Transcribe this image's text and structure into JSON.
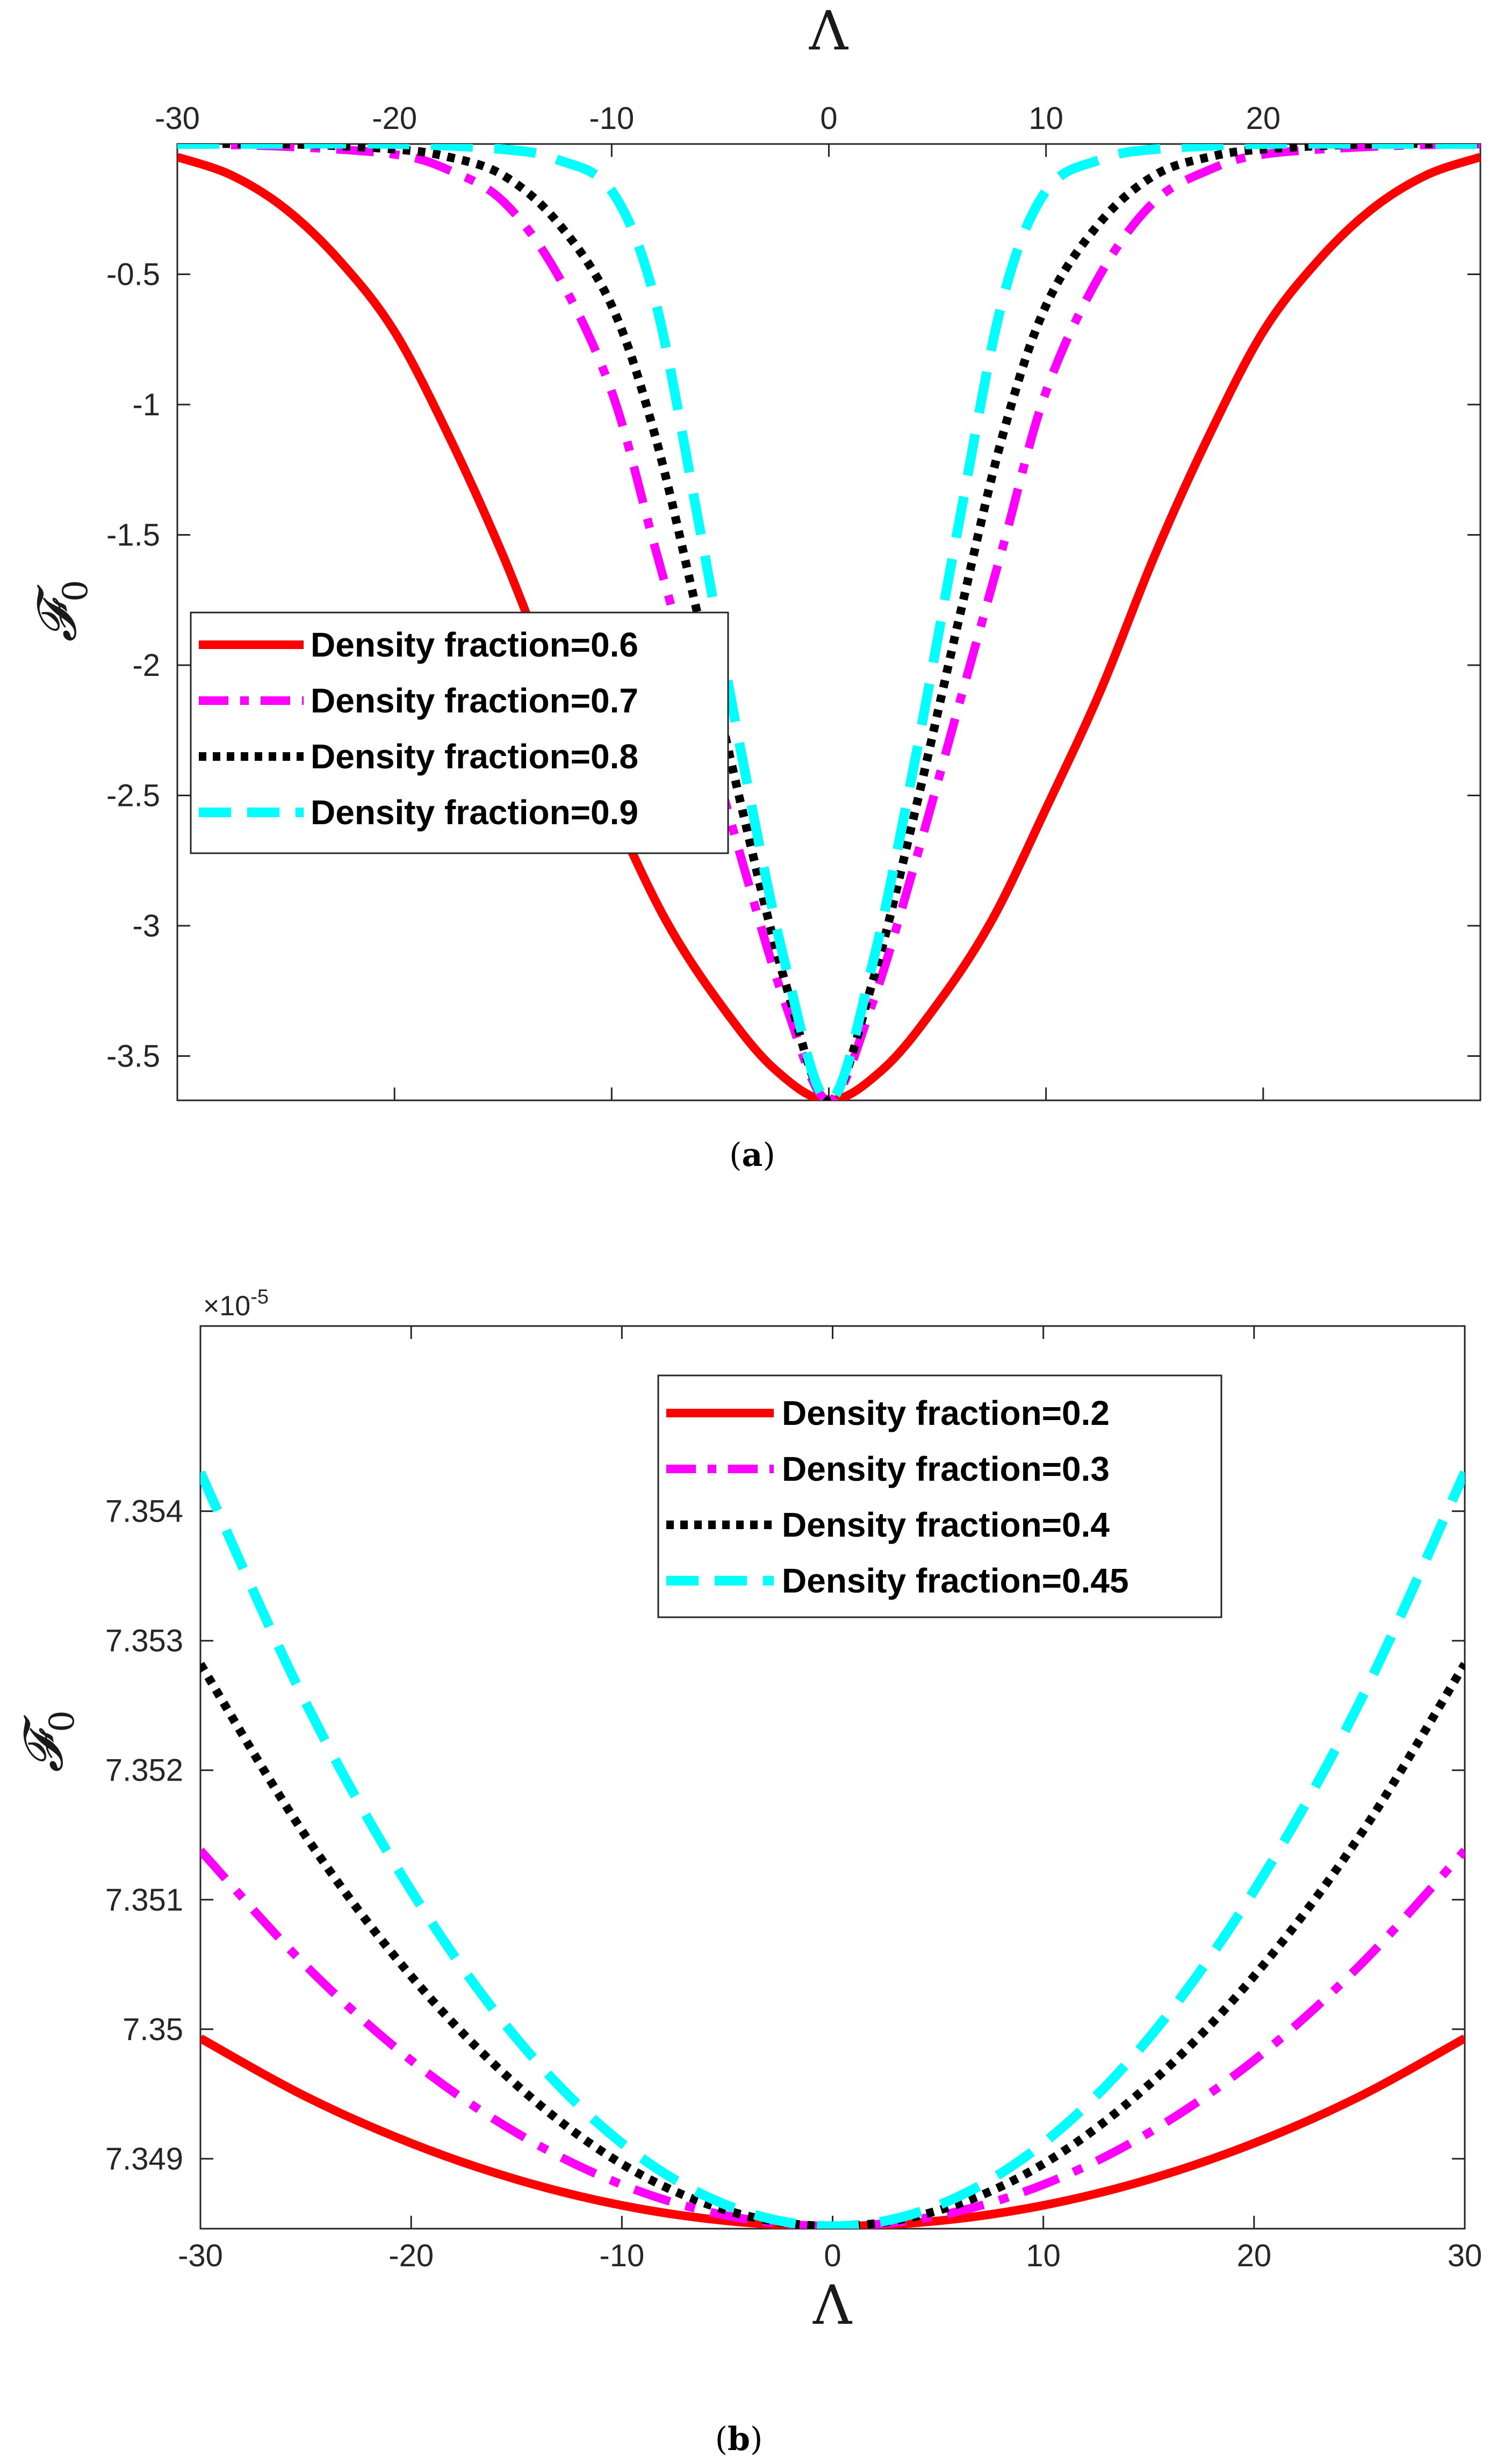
{
  "chart_data": [
    {
      "id": "a",
      "type": "line",
      "caption_letter": "a",
      "xlabel": "Λ",
      "ylabel": "𝓕",
      "ylabel_sub": "0",
      "xlim": [
        -30,
        30
      ],
      "ylim": [
        -3.67,
        0
      ],
      "x_axis_position": "top",
      "xticks": [
        -30,
        -20,
        -10,
        0,
        10,
        20
      ],
      "xtick_labels": [
        "-30",
        "-20",
        "-10",
        "0",
        "10",
        "20"
      ],
      "yticks": [
        -0.5,
        -1,
        -1.5,
        -2,
        -2.5,
        -3,
        -3.5
      ],
      "ytick_labels": [
        "-0.5",
        "-1",
        "-1.5",
        "-2",
        "-2.5",
        "-3",
        "-3.5"
      ],
      "legend_position": "middle-left",
      "series": [
        {
          "name": "Density fraction=0.6",
          "color": "#ff0000",
          "style": "solid",
          "x": [
            -30,
            -27.5,
            -25,
            -22.5,
            -20,
            -17.5,
            -15,
            -12.5,
            -10,
            -7.5,
            -5,
            -2.5,
            0,
            2.5,
            5,
            7.5,
            10,
            12.5,
            15,
            17.5,
            20,
            22.5,
            25,
            27.5,
            30
          ],
          "y": [
            -0.05,
            -0.12,
            -0.25,
            -0.45,
            -0.72,
            -1.12,
            -1.58,
            -2.1,
            -2.55,
            -2.98,
            -3.3,
            -3.55,
            -3.67,
            -3.55,
            -3.3,
            -2.98,
            -2.55,
            -2.1,
            -1.58,
            -1.12,
            -0.72,
            -0.45,
            -0.25,
            -0.12,
            -0.05
          ]
        },
        {
          "name": "Density fraction=0.7",
          "color": "#ff00ff",
          "style": "dashdot",
          "x": [
            -30,
            -25,
            -20,
            -17.5,
            -15,
            -12.5,
            -10,
            -8,
            -6,
            -4,
            -2,
            0,
            2,
            4,
            6,
            8,
            10,
            12.5,
            15,
            17.5,
            20,
            25,
            30
          ],
          "y": [
            0,
            -0.01,
            -0.04,
            -0.1,
            -0.22,
            -0.5,
            -0.95,
            -1.55,
            -2.15,
            -2.75,
            -3.3,
            -3.67,
            -3.3,
            -2.75,
            -2.15,
            -1.55,
            -0.95,
            -0.5,
            -0.22,
            -0.1,
            -0.04,
            -0.01,
            0
          ]
        },
        {
          "name": "Density fraction=0.8",
          "color": "#000000",
          "style": "dotted",
          "x": [
            -30,
            -25,
            -20,
            -17.5,
            -15,
            -12.5,
            -10,
            -8,
            -6,
            -4,
            -2,
            0,
            2,
            4,
            6,
            8,
            10,
            12.5,
            15,
            17.5,
            20,
            25,
            30
          ],
          "y": [
            0,
            0,
            -0.02,
            -0.05,
            -0.12,
            -0.3,
            -0.62,
            -1.12,
            -1.82,
            -2.55,
            -3.22,
            -3.67,
            -3.22,
            -2.55,
            -1.82,
            -1.12,
            -0.62,
            -0.3,
            -0.12,
            -0.05,
            -0.02,
            0,
            0
          ]
        },
        {
          "name": "Density fraction=0.9",
          "color": "#00ffff",
          "style": "dashed",
          "x": [
            -30,
            -25,
            -20,
            -15,
            -12.5,
            -10,
            -8,
            -6,
            -4,
            -2,
            0,
            2,
            4,
            6,
            8,
            10,
            12.5,
            15,
            20,
            25,
            30
          ],
          "y": [
            0,
            0,
            0,
            -0.02,
            -0.06,
            -0.18,
            -0.6,
            -1.45,
            -2.35,
            -3.15,
            -3.67,
            -3.15,
            -2.35,
            -1.45,
            -0.6,
            -0.18,
            -0.06,
            -0.02,
            0,
            0,
            0
          ]
        }
      ]
    },
    {
      "id": "b",
      "type": "line",
      "caption_letter": "b",
      "xlabel": "Λ",
      "ylabel": "𝓕",
      "ylabel_sub": "0",
      "exponent_label": "×10",
      "exponent_power": "-5",
      "xlim": [
        -30,
        30
      ],
      "ylim": [
        7.34846,
        7.35543
      ],
      "x_axis_position": "bottom",
      "xticks": [
        -30,
        -20,
        -10,
        0,
        10,
        20,
        30
      ],
      "xtick_labels": [
        "-30",
        "-20",
        "-10",
        "0",
        "10",
        "20",
        "30"
      ],
      "yticks": [
        7.349,
        7.35,
        7.351,
        7.352,
        7.353,
        7.354
      ],
      "ytick_labels": [
        "7.349",
        "7.35",
        "7.351",
        "7.352",
        "7.353",
        "7.354"
      ],
      "legend_position": "top-right",
      "series": [
        {
          "name": "Density fraction=0.2",
          "color": "#ff0000",
          "style": "solid",
          "x": [
            -30,
            -25,
            -20,
            -15,
            -10,
            -5,
            0,
            5,
            10,
            15,
            20,
            25,
            30
          ],
          "y": [
            7.34993,
            7.34948,
            7.34912,
            7.34884,
            7.34864,
            7.34852,
            7.34848,
            7.34852,
            7.34864,
            7.34884,
            7.34912,
            7.34948,
            7.34993
          ]
        },
        {
          "name": "Density fraction=0.3",
          "color": "#ff00ff",
          "style": "dashdot",
          "x": [
            -30,
            -25,
            -20,
            -15,
            -10,
            -5,
            0,
            5,
            10,
            15,
            20,
            25,
            30
          ],
          "y": [
            7.35138,
            7.35049,
            7.34976,
            7.3492,
            7.3488,
            7.34856,
            7.34848,
            7.34856,
            7.3488,
            7.3492,
            7.34976,
            7.35049,
            7.35138
          ]
        },
        {
          "name": "Density fraction=0.4",
          "color": "#000000",
          "style": "dotted",
          "x": [
            -30,
            -25,
            -20,
            -15,
            -10,
            -5,
            0,
            5,
            10,
            15,
            20,
            25,
            30
          ],
          "y": [
            7.35282,
            7.35149,
            7.35041,
            7.34957,
            7.34896,
            7.3486,
            7.34848,
            7.3486,
            7.34896,
            7.34957,
            7.35041,
            7.35149,
            7.35282
          ]
        },
        {
          "name": "Density fraction=0.45",
          "color": "#00ffff",
          "style": "dashed",
          "x": [
            -30,
            -25,
            -20,
            -15,
            -10,
            -5,
            0,
            5,
            10,
            15,
            20,
            25,
            30
          ],
          "y": [
            7.3543,
            7.35252,
            7.35107,
            7.34993,
            7.34912,
            7.34864,
            7.34848,
            7.34864,
            7.34912,
            7.34993,
            7.35107,
            7.35252,
            7.3543
          ]
        }
      ]
    }
  ]
}
